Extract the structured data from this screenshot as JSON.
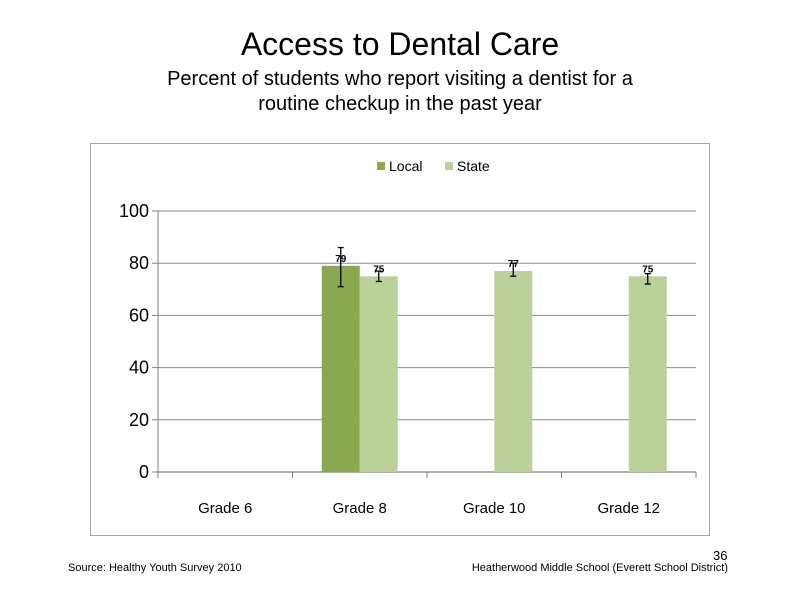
{
  "slide": {
    "title": "Access to Dental Care",
    "subtitle": "Percent of students who report visiting a dentist for a routine checkup in the past year",
    "source": "Source: Healthy Youth Survey 2010",
    "school": "Heatherwood Middle School (Everett School District)",
    "page_number": "36"
  },
  "chart_data": {
    "type": "bar",
    "categories": [
      "Grade 6",
      "Grade 8",
      "Grade 10",
      "Grade 12"
    ],
    "series": [
      {
        "name": "Local",
        "color": "#8aa84f",
        "values": [
          null,
          79,
          null,
          null
        ],
        "labels": [
          "",
          "79",
          "",
          ""
        ],
        "error_low": [
          null,
          71,
          null,
          null
        ],
        "error_high": [
          null,
          86,
          null,
          null
        ]
      },
      {
        "name": "State",
        "color": "#bcd19a",
        "values": [
          null,
          75,
          77,
          75
        ],
        "labels": [
          "",
          "75",
          "77",
          "75"
        ],
        "error_low": [
          null,
          73,
          75,
          72
        ],
        "error_high": [
          null,
          77,
          80,
          76
        ]
      }
    ],
    "ylim": [
      0,
      100
    ],
    "yticks": [
      0,
      20,
      40,
      60,
      80,
      100
    ],
    "ytick_labels": [
      "0",
      "20",
      "40",
      "60",
      "80",
      "100"
    ],
    "grid": true,
    "legend_position": "top",
    "xlabel": "",
    "ylabel": ""
  }
}
